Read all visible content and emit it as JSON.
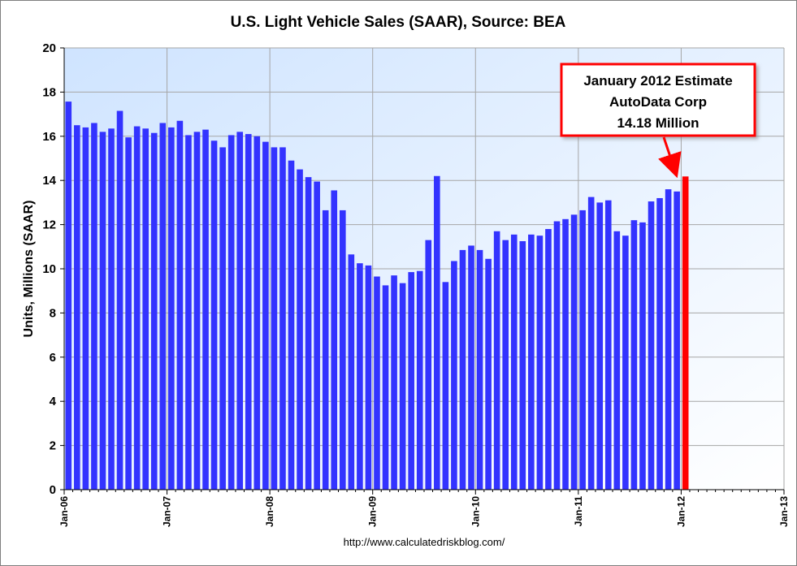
{
  "chart_data": {
    "type": "bar",
    "title": "U.S. Light Vehicle Sales (SAAR), Source: BEA",
    "ylabel": "Units, Millions (SAAR)",
    "xlabel": "",
    "ylim": [
      0,
      20
    ],
    "yticks": [
      0,
      2,
      4,
      6,
      8,
      10,
      12,
      14,
      16,
      18,
      20
    ],
    "x_start": "Jan-06",
    "x_tick_labels": [
      "Jan-06",
      "Jan-07",
      "Jan-08",
      "Jan-09",
      "Jan-10",
      "Jan-11",
      "Jan-12",
      "Jan-13"
    ],
    "grid": true,
    "source_note": "http://www.calculatedriskblog.com/",
    "colors": {
      "bar": "#3333ff",
      "highlight": "#ff0000",
      "plot_bg": "#ddeeff",
      "grid": "#a6a6a6"
    },
    "series": [
      {
        "values": [
          17.57,
          16.5,
          16.4,
          16.6,
          16.2,
          16.35,
          17.15,
          15.95,
          16.45,
          16.35,
          16.15,
          16.6,
          16.4,
          16.7,
          16.05,
          16.2,
          16.3,
          15.8,
          15.5,
          16.05,
          16.2,
          16.1,
          16.0,
          15.75,
          15.5,
          15.5,
          14.9,
          14.5,
          14.15,
          13.95,
          12.65,
          13.55,
          12.65,
          10.65,
          10.25,
          10.15,
          9.65,
          9.25,
          9.7,
          9.35,
          9.85,
          9.9,
          11.3,
          14.2,
          9.4,
          10.35,
          10.85,
          11.05,
          10.85,
          10.45,
          11.7,
          11.3,
          11.55,
          11.25,
          11.55,
          11.5,
          11.8,
          12.15,
          12.25,
          12.45,
          12.65,
          13.25,
          13.0,
          13.1,
          11.7,
          11.5,
          12.2,
          12.1,
          13.05,
          13.2,
          13.6,
          13.5
        ]
      },
      {
        "name": "January 2012 Estimate",
        "month_index": 72,
        "values": [
          14.18
        ]
      }
    ],
    "annotation": {
      "lines": [
        "January  2012 Estimate",
        "AutoData  Corp",
        "14.18 Million"
      ],
      "color": "#ff0000"
    }
  }
}
